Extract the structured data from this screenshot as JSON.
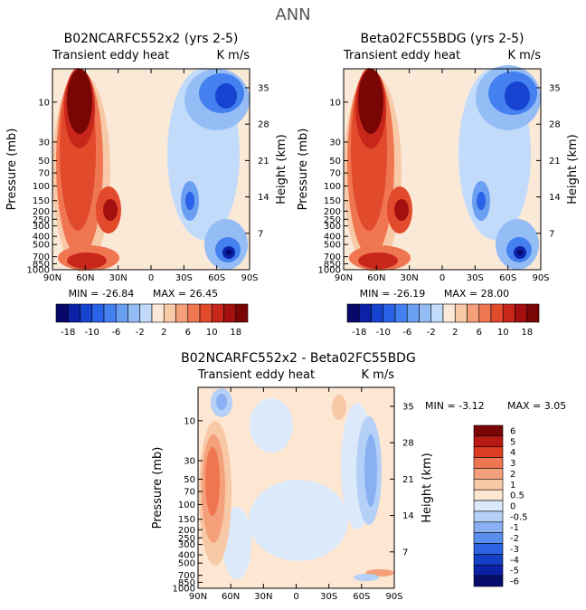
{
  "figure_title": "ANN",
  "chart_data": [
    {
      "type": "heatmap",
      "title": "B02NCARFC552x2 (yrs 2-5)",
      "subtitle_left": "Transient eddy heat",
      "subtitle_right": "K m/s",
      "ylabel": "Pressure (mb)",
      "ylabel_right": "Height (km)",
      "x_ticks": [
        "90N",
        "60N",
        "30N",
        "0",
        "30S",
        "60S",
        "90S"
      ],
      "y_ticks": [
        "10",
        "30",
        "50",
        "70",
        "100",
        "150",
        "200",
        "250",
        "300",
        "400",
        "500",
        "700",
        "850",
        "1000"
      ],
      "y_ticks_right": [
        "35",
        "28",
        "21",
        "14",
        "7"
      ],
      "min_label": "MIN = -26.84",
      "max_label": "MAX = 26.45",
      "colorbar_labels": [
        "-18",
        "-10",
        "-6",
        "-2",
        "2",
        "6",
        "10",
        "18"
      ]
    },
    {
      "type": "heatmap",
      "title": "Beta02FC55BDG (yrs 2-5)",
      "subtitle_left": "Transient eddy heat",
      "subtitle_right": "K m/s",
      "ylabel": "Pressure (mb)",
      "ylabel_right": "Height (km)",
      "x_ticks": [
        "90N",
        "60N",
        "30N",
        "0",
        "30S",
        "60S",
        "90S"
      ],
      "y_ticks": [
        "10",
        "30",
        "50",
        "70",
        "100",
        "150",
        "200",
        "250",
        "300",
        "400",
        "500",
        "700",
        "850",
        "1000"
      ],
      "y_ticks_right": [
        "35",
        "28",
        "21",
        "14",
        "7"
      ],
      "min_label": "MIN = -26.19",
      "max_label": "MAX = 28.00",
      "colorbar_labels": [
        "-18",
        "-10",
        "-6",
        "-2",
        "2",
        "6",
        "10",
        "18"
      ]
    },
    {
      "type": "heatmap",
      "title": "B02NCARFC552x2 - Beta02FC55BDG",
      "subtitle_left": "Transient eddy heat",
      "subtitle_right": "K m/s",
      "ylabel": "Pressure (mb)",
      "ylabel_right": "Height (km)",
      "x_ticks": [
        "90N",
        "60N",
        "30N",
        "0",
        "30S",
        "60S",
        "90S"
      ],
      "y_ticks": [
        "10",
        "30",
        "50",
        "70",
        "100",
        "150",
        "200",
        "250",
        "300",
        "400",
        "500",
        "700",
        "850",
        "1000"
      ],
      "y_ticks_right": [
        "35",
        "28",
        "21",
        "14",
        "7"
      ],
      "min_label": "MIN =   -3.12",
      "max_label": "MAX =    3.05",
      "colorbar_labels": [
        "6",
        "5",
        "4",
        "3",
        "2",
        "1",
        "0.5",
        "0",
        "-0.5",
        "-1",
        "-2",
        "-3",
        "-4",
        "-5",
        "-6"
      ]
    }
  ],
  "colors": {
    "scale16": [
      "#08086b",
      "#0c22a6",
      "#1643cf",
      "#2a62e8",
      "#4480f0",
      "#6a9ff2",
      "#95bdf5",
      "#c3dbfa",
      "#fbe9d8",
      "#f8c9a7",
      "#f4a07a",
      "#ef7650",
      "#e24a2c",
      "#c8261a",
      "#a3100f",
      "#7a0505"
    ],
    "scale14": [
      "#7a0505",
      "#b81a12",
      "#dc3d22",
      "#ef7650",
      "#f4a07a",
      "#f8c9a7",
      "#fde6d2",
      "#dbe9fb",
      "#b4d0f7",
      "#88b0f2",
      "#5a8eee",
      "#2e63e3",
      "#1340c5",
      "#0c22a6",
      "#060e6b"
    ],
    "frame": "#000000"
  }
}
